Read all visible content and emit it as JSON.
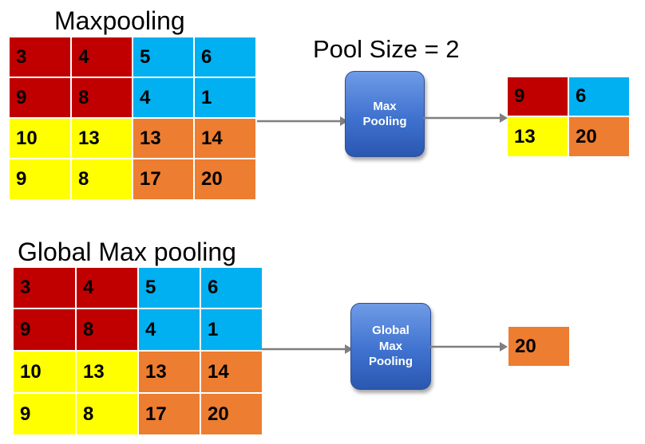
{
  "colors": {
    "red": "#c00000",
    "blue": "#00b0f0",
    "yellow": "#ffff00",
    "orange": "#ed7d31"
  },
  "top": {
    "title": "Maxpooling",
    "pool_label": "Pool Size = 2",
    "input": [
      [
        {
          "v": "3",
          "c": "red"
        },
        {
          "v": "4",
          "c": "red"
        },
        {
          "v": "5",
          "c": "blue"
        },
        {
          "v": "6",
          "c": "blue"
        }
      ],
      [
        {
          "v": "9",
          "c": "red"
        },
        {
          "v": "8",
          "c": "red"
        },
        {
          "v": "4",
          "c": "blue"
        },
        {
          "v": "1",
          "c": "blue"
        }
      ],
      [
        {
          "v": "10",
          "c": "yellow"
        },
        {
          "v": "13",
          "c": "yellow"
        },
        {
          "v": "13",
          "c": "orange"
        },
        {
          "v": "14",
          "c": "orange"
        }
      ],
      [
        {
          "v": "9",
          "c": "yellow"
        },
        {
          "v": "8",
          "c": "yellow"
        },
        {
          "v": "17",
          "c": "orange"
        },
        {
          "v": "20",
          "c": "orange"
        }
      ]
    ],
    "box": [
      "Max",
      "Pooling"
    ],
    "output": [
      [
        {
          "v": "9",
          "c": "red"
        },
        {
          "v": "6",
          "c": "blue"
        }
      ],
      [
        {
          "v": "13",
          "c": "yellow"
        },
        {
          "v": "20",
          "c": "orange"
        }
      ]
    ]
  },
  "bottom": {
    "title": "Global Max pooling",
    "input": [
      [
        {
          "v": "3",
          "c": "red"
        },
        {
          "v": "4",
          "c": "red"
        },
        {
          "v": "5",
          "c": "blue"
        },
        {
          "v": "6",
          "c": "blue"
        }
      ],
      [
        {
          "v": "9",
          "c": "red"
        },
        {
          "v": "8",
          "c": "red"
        },
        {
          "v": "4",
          "c": "blue"
        },
        {
          "v": "1",
          "c": "blue"
        }
      ],
      [
        {
          "v": "10",
          "c": "yellow"
        },
        {
          "v": "13",
          "c": "yellow"
        },
        {
          "v": "13",
          "c": "orange"
        },
        {
          "v": "14",
          "c": "orange"
        }
      ],
      [
        {
          "v": "9",
          "c": "yellow"
        },
        {
          "v": "8",
          "c": "yellow"
        },
        {
          "v": "17",
          "c": "orange"
        },
        {
          "v": "20",
          "c": "orange"
        }
      ]
    ],
    "box": [
      "Global",
      "Max",
      "Pooling"
    ],
    "output": [
      [
        {
          "v": "20",
          "c": "orange"
        }
      ]
    ]
  }
}
